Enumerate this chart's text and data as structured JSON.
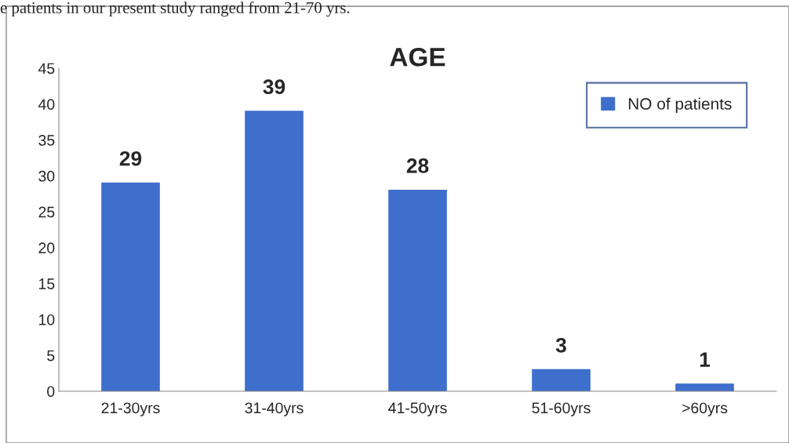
{
  "chart_data": {
    "type": "bar",
    "title": "AGE",
    "categories": [
      "21-30yrs",
      "31-40yrs",
      "41-50yrs",
      "51-60yrs",
      ">60yrs"
    ],
    "series": [
      {
        "name": "NO of patients",
        "color": "#3f6fcc",
        "values": [
          29,
          39,
          28,
          3,
          1
        ]
      }
    ],
    "ylim": [
      0,
      45
    ],
    "yticks": [
      0,
      5,
      10,
      15,
      20,
      25,
      30,
      35,
      40,
      45
    ],
    "data_labels": true,
    "legend": "top right",
    "grid": false,
    "annotations": [
      "e patients in our present study ranged from 21-70 yrs."
    ]
  }
}
